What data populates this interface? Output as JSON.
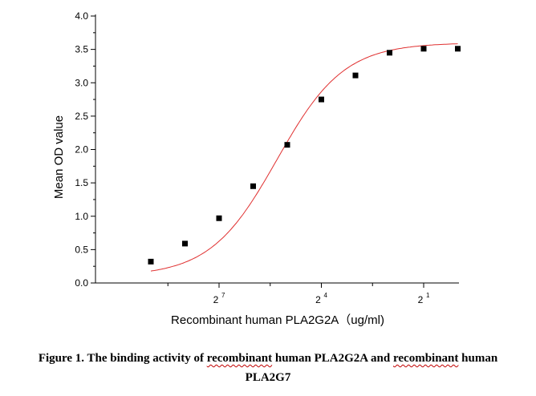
{
  "chart_data": {
    "type": "scatter",
    "xlabel": "Recombinant human PLA2G2A（ug/ml)",
    "ylabel": "Mean OD value",
    "xscale": "log2 (reversed, decreasing to the right)",
    "x_tick_labels": [
      {
        "base": "2",
        "exp": "7"
      },
      {
        "base": "2",
        "exp": "4"
      },
      {
        "base": "2",
        "exp": "1"
      }
    ],
    "ylim": [
      0.0,
      4.0
    ],
    "y_tick_labels": [
      "0.0",
      "0.5",
      "1.0",
      "1.5",
      "2.0",
      "2.5",
      "3.0",
      "3.5",
      "4.0"
    ],
    "grid": false,
    "series": [
      {
        "kind": "points",
        "marker": "square",
        "color": "#000000",
        "points": [
          {
            "x": 9,
            "y": 0.32
          },
          {
            "x": 8,
            "y": 0.59
          },
          {
            "x": 7,
            "y": 0.97
          },
          {
            "x": 6,
            "y": 1.45
          },
          {
            "x": 5,
            "y": 2.07
          },
          {
            "x": 4,
            "y": 2.75
          },
          {
            "x": 3,
            "y": 3.11
          },
          {
            "x": 2,
            "y": 3.45
          },
          {
            "x": 1,
            "y": 3.51
          },
          {
            "x": 0,
            "y": 3.51
          }
        ]
      },
      {
        "kind": "fit",
        "curve": "four-parameter logistic",
        "color": "#e03030"
      }
    ]
  },
  "caption": {
    "line1_parts": [
      {
        "text": "Figure 1. The binding activity of ",
        "squiggle": false
      },
      {
        "text": "recombinant",
        "squiggle": true
      },
      {
        "text": " human PLA2G2A and ",
        "squiggle": false
      },
      {
        "text": "recombinant",
        "squiggle": true
      },
      {
        "text": " human",
        "squiggle": false
      }
    ],
    "line2": "PLA2G7"
  }
}
